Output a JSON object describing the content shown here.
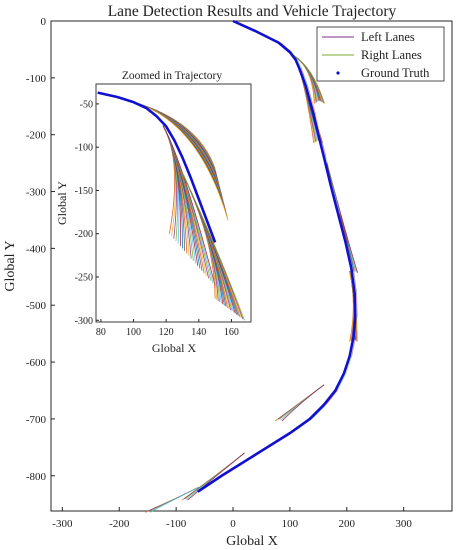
{
  "chart_data": {
    "type": "line",
    "title": "Lane Detection Results and Vehicle Trajectory",
    "xlabel": "Global X",
    "ylabel": "Global Y",
    "xlim": [
      -320,
      385
    ],
    "ylim": [
      -862,
      0
    ],
    "xticks": [
      "-300",
      "-200",
      "-100",
      "0",
      "100",
      "200",
      "300"
    ],
    "yticks": [
      "0",
      "-100",
      "-200",
      "-300",
      "-400",
      "-500",
      "-600",
      "-700",
      "-800"
    ],
    "grid": false,
    "legend": {
      "position": "top-right",
      "entries": [
        {
          "label": "Left Lanes",
          "color": "#7e2f8e"
        },
        {
          "label": "Right Lanes",
          "color": "#77ac30"
        },
        {
          "label": "Ground Truth",
          "color": "#1010d0"
        }
      ]
    },
    "series": [
      {
        "name": "Ground Truth",
        "color": "#1010d0",
        "x": [
          0,
          40,
          80,
          100,
          110,
          116,
          122,
          128,
          135,
          142,
          150,
          160,
          172,
          185,
          198,
          208,
          214,
          215,
          212,
          205,
          195,
          180,
          160,
          135,
          100,
          60,
          20,
          -20,
          -50,
          -62
        ],
        "y": [
          0,
          -18,
          -38,
          -55,
          -68,
          -82,
          -98,
          -115,
          -140,
          -165,
          -200,
          -240,
          -290,
          -340,
          -390,
          -435,
          -480,
          -520,
          -555,
          -590,
          -620,
          -650,
          -675,
          -700,
          -725,
          -750,
          -775,
          -800,
          -820,
          -828
        ]
      }
    ],
    "inset": {
      "title": "Zoomed in Trajectory",
      "xlabel": "Global X",
      "ylabel": "Global Y",
      "xlim": [
        77,
        172
      ],
      "ylim": [
        -302,
        -27
      ],
      "xticks": [
        "80",
        "100",
        "120",
        "140",
        "160"
      ],
      "yticks": [
        "-50",
        "-100",
        "-150",
        "-200",
        "-250",
        "-300"
      ],
      "ground_truth": {
        "x": [
          78,
          90,
          100,
          108,
          114,
          120,
          125,
          130,
          135,
          140,
          145,
          150
        ],
        "y": [
          -37,
          -42,
          -48,
          -55,
          -64,
          -76,
          -92,
          -112,
          -135,
          -160,
          -185,
          -210
        ]
      }
    },
    "colors": {
      "accent": "#1010d0",
      "lane_palette": [
        "#d95319",
        "#edb120",
        "#7e2f8e",
        "#77ac30",
        "#4dbeee",
        "#a2142f",
        "#0072bd",
        "#555555"
      ]
    }
  }
}
